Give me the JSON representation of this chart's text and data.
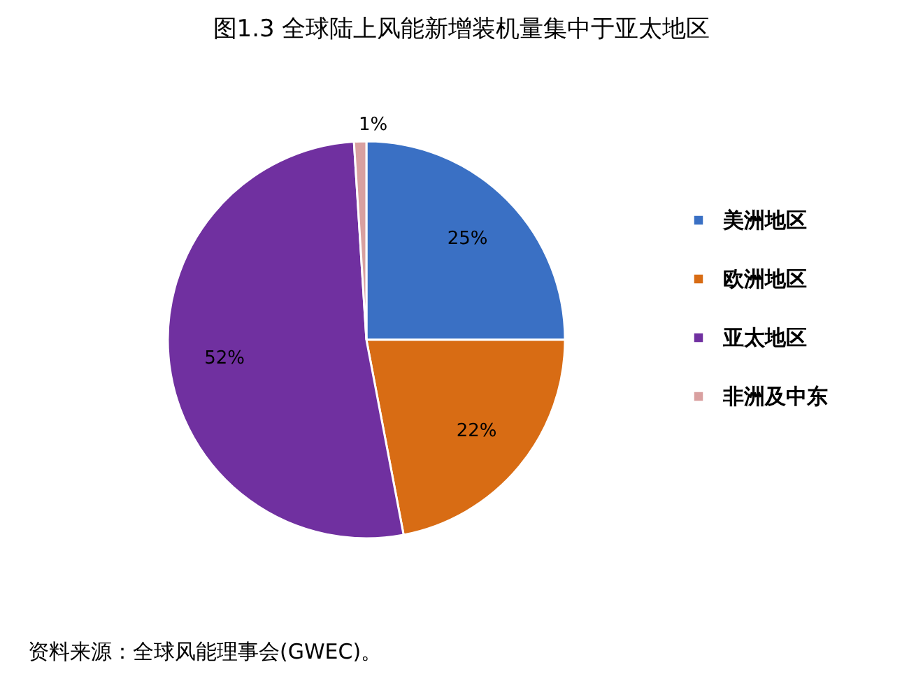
{
  "chart_data": {
    "type": "pie",
    "title": "图1.3    全球陆上风能新增装机量集中于亚太地区",
    "categories": [
      "美洲地区",
      "欧洲地区",
      "亚太地区",
      "非洲及中东"
    ],
    "values": [
      25,
      22,
      52,
      1
    ],
    "colors": [
      "#3a70c4",
      "#d86c14",
      "#7030a0",
      "#d9a0a0"
    ],
    "value_labels": [
      "25%",
      "22%",
      "52%",
      "1%"
    ],
    "legend": "right",
    "annotations": [
      "资料来源：全球风能理事会(GWEC)。"
    ]
  }
}
